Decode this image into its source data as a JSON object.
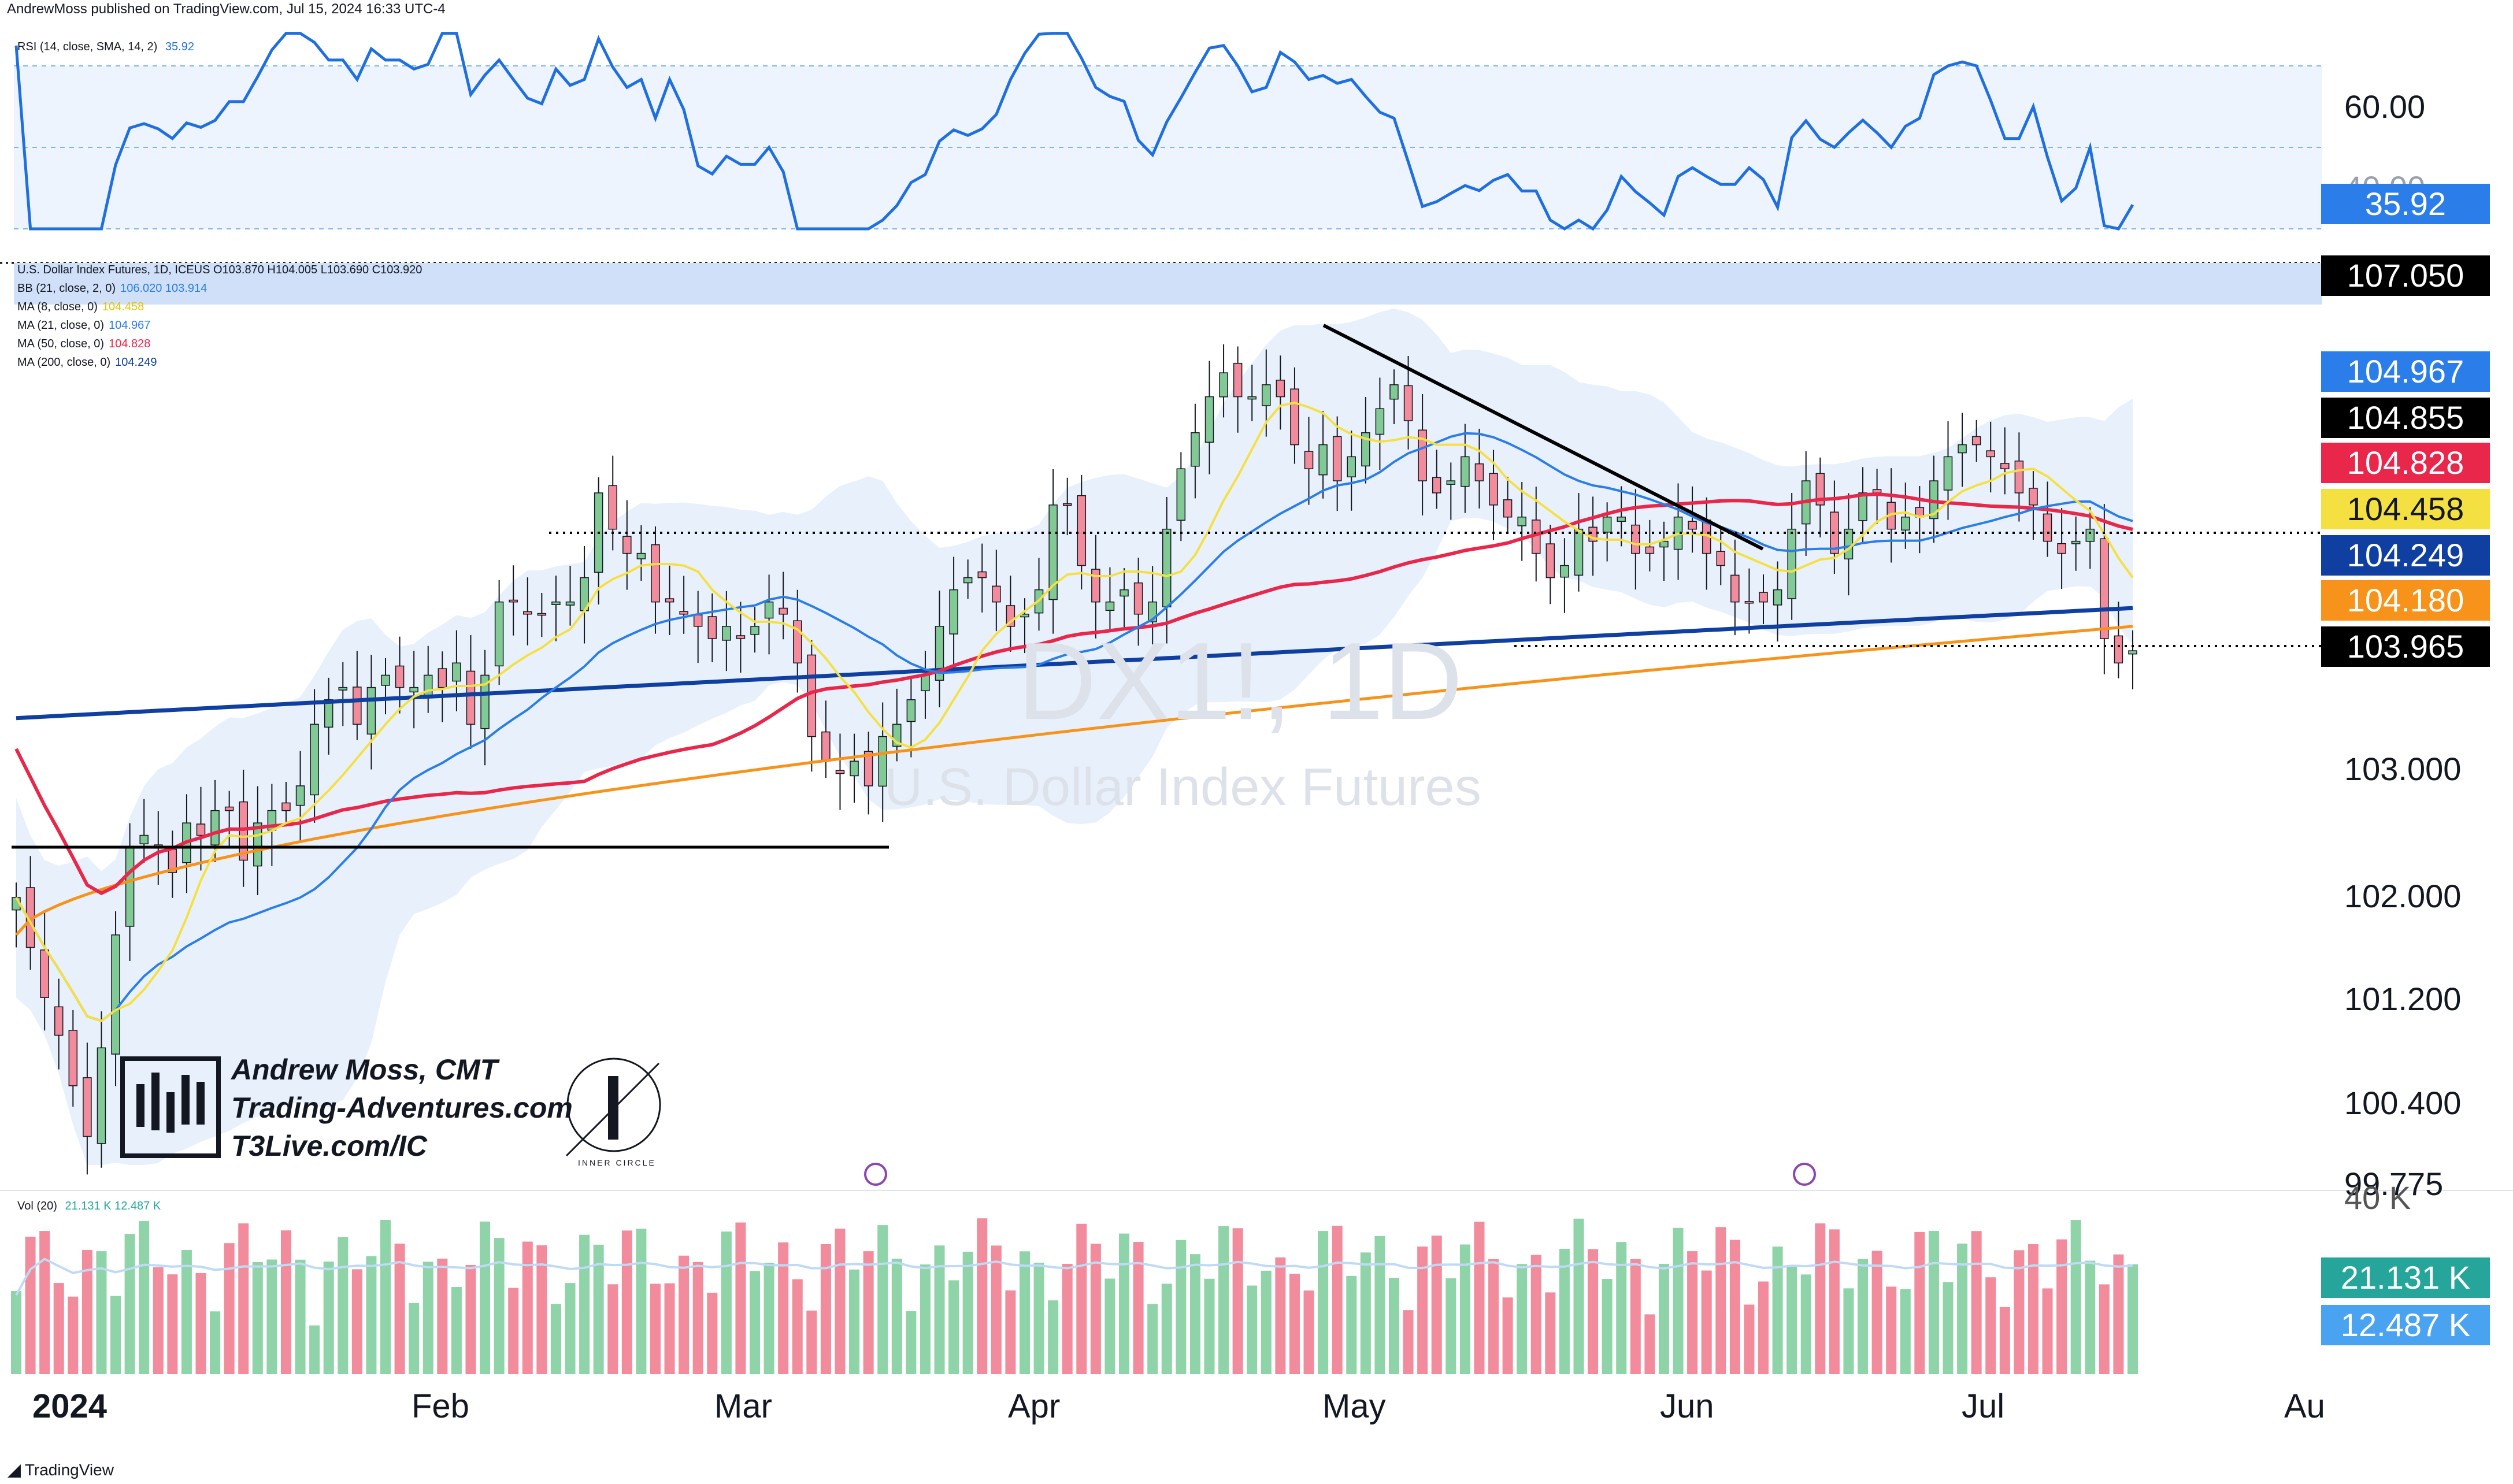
{
  "header": {
    "published": "AndrewMoss published on TradingView.com, Jul 15, 2024 16:33 UTC-4"
  },
  "footer": {
    "brand": "TradingView"
  },
  "watermark": {
    "symbol": "DX1!, 1D",
    "name": "U.S. Dollar Index Futures"
  },
  "branding": {
    "line1": "Andrew Moss, CMT",
    "line2": "Trading-Adventures.com",
    "line3": "T3Live.com/IC",
    "seal": "INNER CIRCLE"
  },
  "colors": {
    "up": "#26a69a",
    "up_body": "#81c995",
    "down": "#f28b9b",
    "ma8": "#f5e042",
    "ma21": "#2b7de9",
    "ma50": "#e8274b",
    "ma200": "#0f3fa0",
    "bb": "#cfe2f3",
    "rsi": "#1f6fe0",
    "vol_ma": "#8fc0f0"
  },
  "rsi_panel": {
    "legend": "RSI (14, close, SMA, 14, 2)",
    "legend_value": "35.92",
    "axis_labels": [
      "60.00",
      "40.00"
    ],
    "current_badge": "35.92"
  },
  "price_panel": {
    "legend_title": "U.S. Dollar Index Futures, 1D, ICEUS O103.870 H104.005 L103.690 C103.920",
    "indicators": [
      {
        "label": "BB (21, close, 2, 0)",
        "values": "106.020  103.914"
      },
      {
        "label": "MA (8, close, 0)",
        "values": "104.458"
      },
      {
        "label": "MA (21, close, 0)",
        "values": "104.967"
      },
      {
        "label": "MA (50, close, 0)",
        "values": "104.828"
      },
      {
        "label": "MA (200, close, 0)",
        "values": "104.249"
      }
    ],
    "badges": [
      {
        "text": "107.050",
        "bg": "#000000",
        "fg": "#ffffff"
      },
      {
        "text": "104.967",
        "bg": "#2b7de9",
        "fg": "#ffffff"
      },
      {
        "text": "104.855",
        "bg": "#000000",
        "fg": "#ffffff"
      },
      {
        "text": "104.828",
        "bg": "#e8274b",
        "fg": "#ffffff"
      },
      {
        "text": "104.458",
        "bg": "#f5e042",
        "fg": "#131722"
      },
      {
        "text": "104.249",
        "bg": "#0f3fa0",
        "fg": "#ffffff"
      },
      {
        "text": "104.180",
        "bg": "#f7931a",
        "fg": "#ffffff"
      },
      {
        "text": "103.965",
        "bg": "#000000",
        "fg": "#ffffff"
      }
    ],
    "axis_labels": [
      "103.000",
      "102.000",
      "101.200",
      "100.400",
      "99.775"
    ]
  },
  "volume_panel": {
    "legend": "Vol (20)",
    "legend_values": "21.131 K  12.487 K",
    "axis_label": "40 K",
    "badges": [
      {
        "text": "21.131 K",
        "bg": "#26a69a",
        "fg": "#ffffff"
      },
      {
        "text": "12.487 K",
        "bg": "#4aa3f0",
        "fg": "#ffffff"
      }
    ]
  },
  "x_axis": {
    "labels": [
      "2024",
      "Feb",
      "Mar",
      "Apr",
      "May",
      "Jun",
      "Jul",
      "Au"
    ]
  },
  "chart_data": {
    "type": "candlestick",
    "title": "U.S. Dollar Index Futures, 1D, ICEUS",
    "interval": "1D",
    "last_ohlc": {
      "open": 103.87,
      "high": 104.005,
      "low": 103.69,
      "close": 103.92
    },
    "x_tick_labels": [
      "2024",
      "Feb",
      "Mar",
      "Apr",
      "May",
      "Jun",
      "Jul",
      "Au"
    ],
    "y_tick_labels": [
      "103.000",
      "102.000",
      "101.200",
      "100.400",
      "99.775"
    ],
    "price_scale": {
      "log": true
    },
    "moving_averages": {
      "MA8": 104.458,
      "MA21": 104.967,
      "MA50": 104.828,
      "MA200": 104.249,
      "BB_upper": 106.02,
      "BB_lower": 103.914
    },
    "closes": [
      101.9,
      101.5,
      101.1,
      100.8,
      100.4,
      100.0,
      100.7,
      101.6,
      102.3,
      102.4,
      102.3,
      102.1,
      102.5,
      102.4,
      102.6,
      102.6,
      102.2,
      102.5,
      102.6,
      102.6,
      102.8,
      103.3,
      103.5,
      103.6,
      103.3,
      103.6,
      103.7,
      103.6,
      103.6,
      103.7,
      103.6,
      103.8,
      103.3,
      103.7,
      104.3,
      104.3,
      104.2,
      104.2,
      104.3,
      104.3,
      104.5,
      105.2,
      104.9,
      104.7,
      104.7,
      104.3,
      104.3,
      104.2,
      104.1,
      104.0,
      104.1,
      104.0,
      104.1,
      104.3,
      104.2,
      103.8,
      103.2,
      103.0,
      102.9,
      103.0,
      102.8,
      103.2,
      103.3,
      103.5,
      103.7,
      104.1,
      104.4,
      104.5,
      104.5,
      104.3,
      104.1,
      104.2,
      104.4,
      105.1,
      105.1,
      104.6,
      104.3,
      104.3,
      104.4,
      104.2,
      104.3,
      104.9,
      105.4,
      105.7,
      106.0,
      106.2,
      106.0,
      106.0,
      106.1,
      106.0,
      105.6,
      105.4,
      105.6,
      105.3,
      105.5,
      105.7,
      105.9,
      106.1,
      105.8,
      105.3,
      105.2,
      105.3,
      105.5,
      105.3,
      105.1,
      105.0,
      105.0,
      104.7,
      104.5,
      104.6,
      104.9,
      104.8,
      105.0,
      105.0,
      104.7,
      104.7,
      104.8,
      105.0,
      104.9,
      104.7,
      104.6,
      104.3,
      104.3,
      104.3,
      104.4,
      104.9,
      105.3,
      105.1,
      104.7,
      104.9,
      105.2,
      105.2,
      104.9,
      105.0,
      105.0,
      105.3,
      105.5,
      105.6,
      105.6,
      105.5,
      105.4,
      105.2,
      105.1,
      104.8,
      104.7,
      104.8,
      104.9,
      104.0,
      103.8,
      103.9
    ],
    "volume_series": [
      {
        "name": "Vol (20)",
        "last": "21.131 K"
      },
      {
        "name": "Vol MA",
        "last": "12.487 K"
      }
    ],
    "rsi": {
      "length": 14,
      "last": 35.92,
      "levels": [
        70,
        50,
        30
      ]
    }
  }
}
